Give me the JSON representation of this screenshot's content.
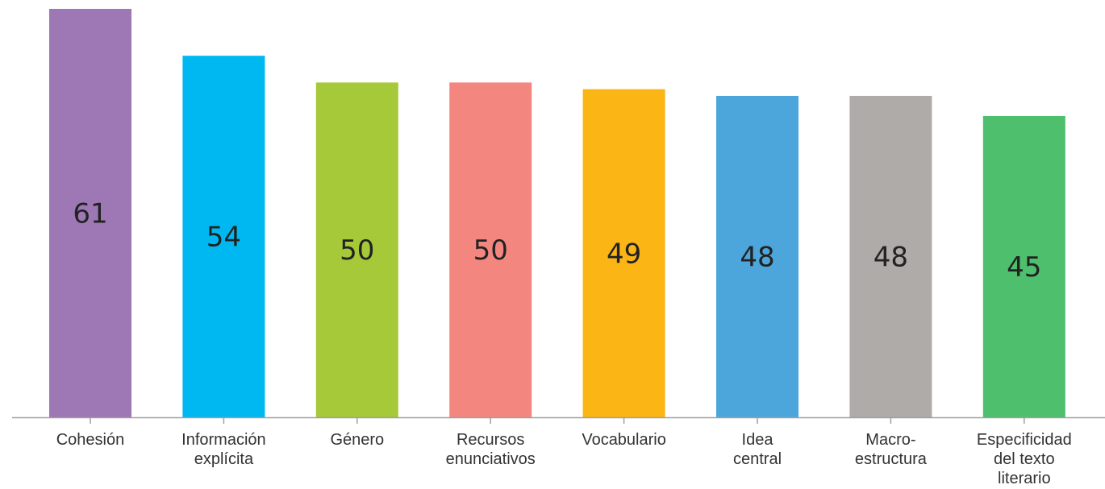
{
  "chart_data": {
    "type": "bar",
    "categories": [
      [
        "Cohesión"
      ],
      [
        "Información",
        "explícita"
      ],
      [
        "Género"
      ],
      [
        "Recursos",
        "enunciativos"
      ],
      [
        "Vocabulario"
      ],
      [
        "Idea",
        "central"
      ],
      [
        "Macro-",
        "estructura"
      ],
      [
        "Especificidad",
        "del texto",
        "literario"
      ]
    ],
    "values": [
      61,
      54,
      50,
      50,
      49,
      48,
      48,
      45
    ],
    "value_labels": [
      "61",
      "54",
      "50",
      "50",
      "49",
      "48",
      "48",
      "45"
    ],
    "colors": [
      "#9e77b5",
      "#00b8f1",
      "#a6c939",
      "#f3877f",
      "#fbb515",
      "#4da6db",
      "#aeaba9",
      "#4dbf6d"
    ],
    "ylim": [
      0,
      61
    ],
    "grid": false,
    "legend": "none",
    "title": "",
    "xlabel": "",
    "ylabel": ""
  }
}
